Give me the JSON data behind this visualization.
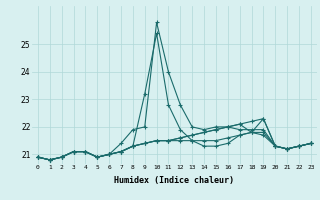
{
  "title": "",
  "xlabel": "Humidex (Indice chaleur)",
  "ylabel": "",
  "background_color": "#d8f0f0",
  "grid_color": "#b0d8d8",
  "line_color": "#1a6b6b",
  "xlim": [
    -0.5,
    23.5
  ],
  "ylim": [
    20.65,
    26.4
  ],
  "yticks": [
    21,
    22,
    23,
    24,
    25
  ],
  "xticks": [
    0,
    1,
    2,
    3,
    4,
    5,
    6,
    7,
    8,
    9,
    10,
    11,
    12,
    13,
    14,
    15,
    16,
    17,
    18,
    19,
    20,
    21,
    22,
    23
  ],
  "series": [
    [
      20.9,
      20.8,
      20.9,
      21.1,
      21.1,
      20.9,
      21.0,
      21.4,
      21.9,
      22.0,
      25.8,
      24.0,
      22.8,
      22.0,
      21.9,
      22.0,
      22.0,
      22.1,
      21.8,
      22.3,
      21.3,
      21.2,
      21.3,
      21.4
    ],
    [
      20.9,
      20.8,
      20.9,
      21.1,
      21.1,
      20.9,
      21.0,
      21.1,
      21.3,
      23.2,
      25.4,
      22.8,
      21.9,
      21.5,
      21.3,
      21.3,
      21.4,
      21.7,
      21.8,
      21.7,
      21.3,
      21.2,
      21.3,
      21.4
    ],
    [
      20.9,
      20.8,
      20.9,
      21.1,
      21.1,
      20.9,
      21.0,
      21.1,
      21.3,
      21.4,
      21.5,
      21.5,
      21.5,
      21.5,
      21.5,
      21.5,
      21.6,
      21.7,
      21.8,
      21.8,
      21.3,
      21.2,
      21.3,
      21.4
    ],
    [
      20.9,
      20.8,
      20.9,
      21.1,
      21.1,
      20.9,
      21.0,
      21.1,
      21.3,
      21.4,
      21.5,
      21.5,
      21.6,
      21.7,
      21.8,
      21.9,
      22.0,
      21.9,
      21.9,
      21.9,
      21.3,
      21.2,
      21.3,
      21.4
    ],
    [
      20.9,
      20.8,
      20.9,
      21.1,
      21.1,
      20.9,
      21.0,
      21.1,
      21.3,
      21.4,
      21.5,
      21.5,
      21.6,
      21.7,
      21.8,
      21.9,
      22.0,
      22.1,
      22.2,
      22.3,
      21.3,
      21.2,
      21.3,
      21.4
    ]
  ]
}
